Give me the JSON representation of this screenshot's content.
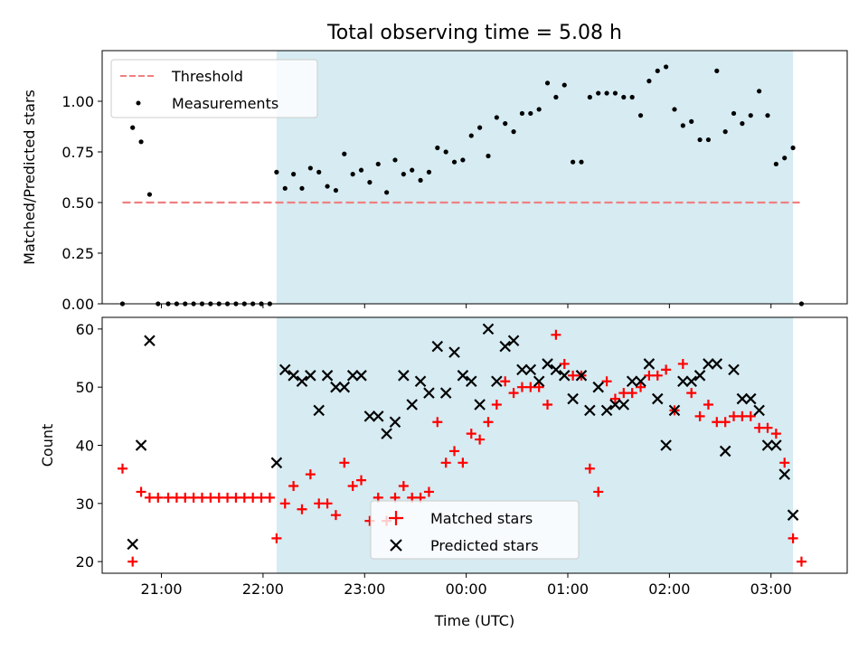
{
  "chart_data": [
    {
      "type": "scatter",
      "title": "Total observing time = 5.08 h",
      "xlabel": "",
      "ylabel": "Matched/Predicted stars",
      "xlim": [
        "20:25",
        "03:45"
      ],
      "ylim": [
        0,
        1.25
      ],
      "yticks": [
        "0.00",
        "0.25",
        "0.50",
        "0.75",
        "1.00"
      ],
      "shaded_span": [
        "22:08",
        "03:13"
      ],
      "legend_position": "upper left",
      "series": [
        {
          "name": "Threshold",
          "kind": "dashed-line",
          "color": "#f08080",
          "x": [
            "20:37",
            "03:17"
          ],
          "y": [
            0.5,
            0.5
          ]
        },
        {
          "name": "Measurements",
          "kind": "dots",
          "color": "#000000",
          "x": [
            "20:37",
            "20:43",
            "20:48",
            "20:53",
            "20:58",
            "21:04",
            "21:09",
            "21:14",
            "21:19",
            "21:24",
            "21:29",
            "21:34",
            "21:39",
            "21:44",
            "21:49",
            "21:54",
            "21:59",
            "22:04",
            "22:08",
            "22:13",
            "22:18",
            "22:23",
            "22:28",
            "22:33",
            "22:38",
            "22:43",
            "22:48",
            "22:53",
            "22:58",
            "23:03",
            "23:08",
            "23:13",
            "23:18",
            "23:23",
            "23:28",
            "23:33",
            "23:38",
            "23:43",
            "23:48",
            "23:53",
            "23:58",
            "00:03",
            "00:08",
            "00:13",
            "00:18",
            "00:23",
            "00:28",
            "00:33",
            "00:38",
            "00:43",
            "00:48",
            "00:53",
            "00:58",
            "01:03",
            "01:08",
            "01:13",
            "01:18",
            "01:23",
            "01:28",
            "01:33",
            "01:38",
            "01:43",
            "01:48",
            "01:53",
            "01:58",
            "02:03",
            "02:08",
            "02:13",
            "02:18",
            "02:23",
            "02:28",
            "02:33",
            "02:38",
            "02:43",
            "02:48",
            "02:53",
            "02:58",
            "03:03",
            "03:08",
            "03:13",
            "03:18"
          ],
          "y": [
            0.0,
            0.87,
            0.8,
            0.54,
            0.0,
            0.0,
            0.0,
            0.0,
            0.0,
            0.0,
            0.0,
            0.0,
            0.0,
            0.0,
            0.0,
            0.0,
            0.0,
            0.0,
            0.65,
            0.57,
            0.64,
            0.57,
            0.67,
            0.65,
            0.58,
            0.56,
            0.74,
            0.64,
            0.66,
            0.6,
            0.69,
            0.55,
            0.71,
            0.64,
            0.66,
            0.61,
            0.65,
            0.77,
            0.75,
            0.7,
            0.71,
            0.83,
            0.87,
            0.73,
            0.92,
            0.89,
            0.85,
            0.94,
            0.94,
            0.96,
            1.09,
            1.02,
            1.08,
            0.7,
            0.7,
            1.02,
            1.04,
            1.04,
            1.04,
            1.02,
            1.02,
            0.93,
            1.1,
            1.15,
            1.17,
            0.96,
            0.88,
            0.9,
            0.81,
            0.81,
            1.15,
            0.85,
            0.94,
            0.89,
            0.93,
            1.05,
            0.93,
            0.69,
            0.72,
            0.77,
            0.0
          ]
        }
      ]
    },
    {
      "type": "scatter",
      "title": "",
      "xlabel": "Time (UTC)",
      "ylabel": "Count",
      "xlim": [
        "20:25",
        "03:45"
      ],
      "ylim": [
        18,
        62
      ],
      "xticks": [
        "21:00",
        "22:00",
        "23:00",
        "00:00",
        "01:00",
        "02:00",
        "03:00"
      ],
      "yticks": [
        "20",
        "30",
        "40",
        "50",
        "60"
      ],
      "shaded_span": [
        "22:08",
        "03:13"
      ],
      "legend_position": "lower center",
      "series": [
        {
          "name": "Matched stars",
          "kind": "plus",
          "color": "#ff0000",
          "x": [
            "20:37",
            "20:43",
            "20:48",
            "20:53",
            "20:58",
            "21:04",
            "21:09",
            "21:14",
            "21:19",
            "21:24",
            "21:29",
            "21:34",
            "21:39",
            "21:44",
            "21:49",
            "21:54",
            "21:59",
            "22:04",
            "22:08",
            "22:13",
            "22:18",
            "22:23",
            "22:28",
            "22:33",
            "22:38",
            "22:43",
            "22:48",
            "22:53",
            "22:58",
            "23:03",
            "23:08",
            "23:13",
            "23:18",
            "23:23",
            "23:28",
            "23:33",
            "23:38",
            "23:43",
            "23:48",
            "23:53",
            "23:58",
            "00:03",
            "00:08",
            "00:13",
            "00:18",
            "00:23",
            "00:28",
            "00:33",
            "00:38",
            "00:43",
            "00:48",
            "00:53",
            "00:58",
            "01:03",
            "01:08",
            "01:13",
            "01:18",
            "01:23",
            "01:28",
            "01:33",
            "01:38",
            "01:43",
            "01:48",
            "01:53",
            "01:58",
            "02:03",
            "02:08",
            "02:13",
            "02:18",
            "02:23",
            "02:28",
            "02:33",
            "02:38",
            "02:43",
            "02:48",
            "02:53",
            "02:58",
            "03:03",
            "03:08",
            "03:13",
            "03:18"
          ],
          "y": [
            36,
            20,
            32,
            31,
            31,
            31,
            31,
            31,
            31,
            31,
            31,
            31,
            31,
            31,
            31,
            31,
            31,
            31,
            24,
            30,
            33,
            29,
            35,
            30,
            30,
            28,
            37,
            33,
            34,
            27,
            31,
            27,
            31,
            33,
            31,
            31,
            32,
            44,
            37,
            39,
            37,
            42,
            41,
            44,
            47,
            51,
            49,
            50,
            50,
            50,
            47,
            59,
            54,
            52,
            52,
            36,
            32,
            51,
            48,
            49,
            49,
            50,
            52,
            52,
            53,
            46,
            54,
            49,
            45,
            47,
            44,
            44,
            45,
            45,
            45,
            43,
            43,
            42,
            37,
            24,
            20
          ]
        },
        {
          "name": "Predicted stars",
          "kind": "x",
          "color": "#000000",
          "x": [
            "20:43",
            "20:48",
            "20:53",
            "22:08",
            "22:13",
            "22:18",
            "22:23",
            "22:28",
            "22:33",
            "22:38",
            "22:43",
            "22:48",
            "22:53",
            "22:58",
            "23:03",
            "23:08",
            "23:13",
            "23:18",
            "23:23",
            "23:28",
            "23:33",
            "23:38",
            "23:43",
            "23:48",
            "23:53",
            "23:58",
            "00:03",
            "00:08",
            "00:13",
            "00:18",
            "00:23",
            "00:28",
            "00:33",
            "00:38",
            "00:43",
            "00:48",
            "00:53",
            "00:58",
            "01:03",
            "01:08",
            "01:13",
            "01:18",
            "01:23",
            "01:28",
            "01:33",
            "01:38",
            "01:43",
            "01:48",
            "01:53",
            "01:58",
            "02:03",
            "02:08",
            "02:13",
            "02:18",
            "02:23",
            "02:28",
            "02:33",
            "02:38",
            "02:43",
            "02:48",
            "02:53",
            "02:58",
            "03:03",
            "03:08",
            "03:13"
          ],
          "y": [
            23,
            40,
            58,
            37,
            53,
            52,
            51,
            52,
            46,
            52,
            50,
            50,
            52,
            52,
            45,
            45,
            42,
            44,
            52,
            47,
            51,
            49,
            57,
            49,
            56,
            52,
            51,
            47,
            60,
            51,
            57,
            58,
            53,
            53,
            51,
            54,
            53,
            52,
            48,
            52,
            46,
            50,
            46,
            47,
            47,
            51,
            51,
            54,
            48,
            40,
            46,
            51,
            51,
            52,
            54,
            54,
            39,
            53,
            48,
            48,
            46,
            40,
            40,
            35,
            28
          ]
        }
      ]
    }
  ]
}
